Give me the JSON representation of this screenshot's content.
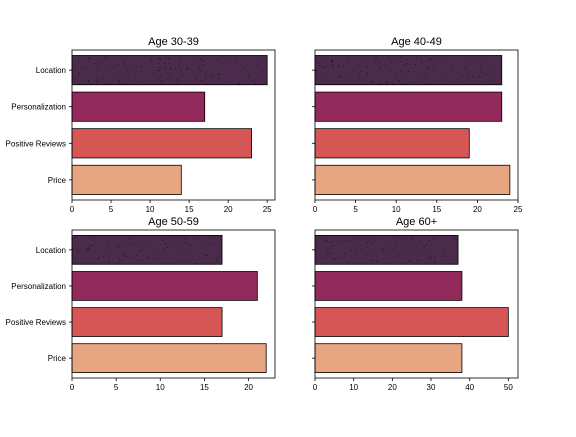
{
  "chart_data": [
    {
      "type": "bar",
      "orientation": "horizontal",
      "title": "Age 30-39",
      "categories": [
        "Location",
        "Personalization",
        "Positive Reviews",
        "Price"
      ],
      "values": [
        25,
        17,
        23,
        14
      ],
      "xlim": [
        0,
        26
      ],
      "xticks": [
        0,
        5,
        10,
        15,
        20,
        25
      ],
      "show_category_labels": true,
      "grid": false,
      "legend": "none"
    },
    {
      "type": "bar",
      "orientation": "horizontal",
      "title": "Age 40-49",
      "categories": [
        "Location",
        "Personalization",
        "Positive Reviews",
        "Price"
      ],
      "values": [
        23,
        23,
        19,
        24
      ],
      "xlim": [
        0,
        25
      ],
      "xticks": [
        0,
        5,
        10,
        15,
        20,
        25
      ],
      "show_category_labels": false,
      "grid": false,
      "legend": "none"
    },
    {
      "type": "bar",
      "orientation": "horizontal",
      "title": "Age 50-59",
      "categories": [
        "Location",
        "Personalization",
        "Positive Reviews",
        "Price"
      ],
      "values": [
        17,
        21,
        17,
        22
      ],
      "xlim": [
        0,
        23
      ],
      "xticks": [
        0,
        5,
        10,
        15,
        20
      ],
      "show_category_labels": true,
      "grid": false,
      "legend": "none"
    },
    {
      "type": "bar",
      "orientation": "horizontal",
      "title": "Age 60+",
      "categories": [
        "Location",
        "Personalization",
        "Positive Reviews",
        "Price"
      ],
      "values": [
        37,
        38,
        50,
        38
      ],
      "xlim": [
        0,
        52.5
      ],
      "xticks": [
        0,
        10,
        20,
        30,
        40,
        50
      ],
      "show_category_labels": false,
      "grid": false,
      "legend": "none"
    }
  ],
  "colors": {
    "Location": "#4a2b4c",
    "Personalization": "#932a5c",
    "Positive Reviews": "#d65656",
    "Price": "#e8a582"
  }
}
